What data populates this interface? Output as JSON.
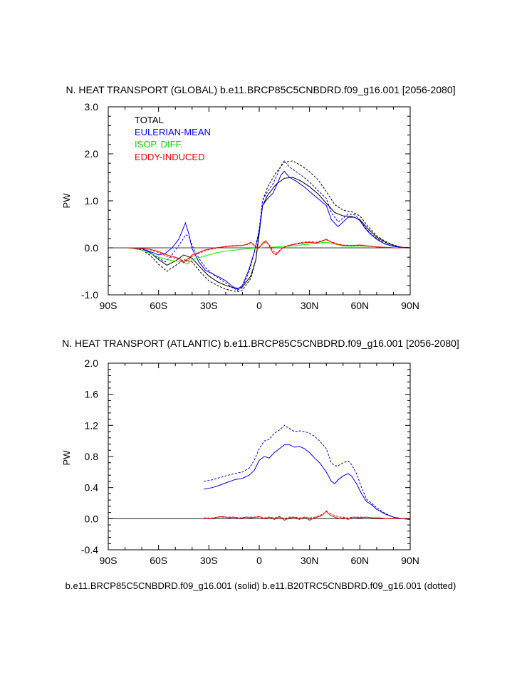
{
  "chart_data": [
    {
      "type": "line",
      "title": "N. HEAT TRANSPORT (GLOBAL) b.e11.BRCP85C5CNBDRD.f09_g16.001 [2056-2080]",
      "xlabel": "",
      "ylabel": "PW",
      "xlim": [
        -90,
        90
      ],
      "ylim": [
        -1.0,
        3.0
      ],
      "xticks": [
        -90,
        -60,
        -30,
        0,
        30,
        60,
        90
      ],
      "xtick_labels": [
        "90S",
        "60S",
        "30S",
        "0",
        "30N",
        "60N",
        "90N"
      ],
      "yticks": [
        -1.0,
        0.0,
        1.0,
        2.0,
        3.0
      ],
      "ytick_labels": [
        "-1.0",
        "0.0",
        "1.0",
        "2.0",
        "3.0"
      ],
      "legend": [
        {
          "label": "TOTAL",
          "color": "#000000"
        },
        {
          "label": "EULERIAN-MEAN",
          "color": "#0000ff"
        },
        {
          "label": "ISOP. DIFF.",
          "color": "#00ff00"
        },
        {
          "label": "EDDY-INDUCED",
          "color": "#ff0000"
        }
      ],
      "series": [
        {
          "name": "TOTAL (solid)",
          "color": "#000000",
          "dash": "solid",
          "x": [
            -78,
            -70,
            -65,
            -60,
            -55,
            -50,
            -45,
            -40,
            -35,
            -30,
            -25,
            -20,
            -15,
            -12,
            -10,
            -5,
            -2,
            0,
            2,
            5,
            10,
            15,
            20,
            25,
            30,
            35,
            40,
            45,
            50,
            55,
            60,
            65,
            70,
            75,
            80,
            85,
            90
          ],
          "y": [
            0,
            -0.02,
            -0.1,
            -0.25,
            -0.37,
            -0.28,
            -0.15,
            -0.22,
            -0.42,
            -0.6,
            -0.72,
            -0.8,
            -0.85,
            -0.86,
            -0.83,
            -0.6,
            -0.25,
            0.3,
            0.9,
            1.12,
            1.35,
            1.48,
            1.5,
            1.42,
            1.3,
            1.15,
            0.95,
            0.75,
            0.68,
            0.67,
            0.6,
            0.4,
            0.23,
            0.12,
            0.05,
            0.01,
            0
          ]
        },
        {
          "name": "TOTAL (dotted)",
          "color": "#000000",
          "dash": "dotted",
          "x": [
            -78,
            -70,
            -65,
            -60,
            -55,
            -50,
            -45,
            -40,
            -35,
            -30,
            -25,
            -20,
            -15,
            -12,
            -10,
            -5,
            -2,
            0,
            2,
            5,
            10,
            15,
            20,
            25,
            30,
            35,
            40,
            45,
            50,
            55,
            60,
            65,
            70,
            75,
            80,
            85,
            90
          ],
          "y": [
            0,
            -0.04,
            -0.16,
            -0.35,
            -0.5,
            -0.38,
            -0.25,
            -0.3,
            -0.52,
            -0.7,
            -0.8,
            -0.88,
            -0.92,
            -0.93,
            -0.9,
            -0.65,
            -0.25,
            0.4,
            1.0,
            1.3,
            1.6,
            1.82,
            1.85,
            1.75,
            1.62,
            1.45,
            1.2,
            0.92,
            0.8,
            0.77,
            0.68,
            0.45,
            0.26,
            0.14,
            0.06,
            0.01,
            0
          ]
        },
        {
          "name": "EULERIAN-MEAN (solid)",
          "color": "#0000ff",
          "dash": "solid",
          "x": [
            -78,
            -70,
            -65,
            -60,
            -56,
            -52,
            -48,
            -46,
            -44,
            -42,
            -40,
            -36,
            -32,
            -28,
            -24,
            -20,
            -16,
            -13,
            -10,
            -6,
            -3,
            0,
            2,
            5,
            8,
            10,
            13,
            15,
            18,
            22,
            26,
            30,
            35,
            40,
            43,
            47,
            50,
            53,
            57,
            60,
            63,
            66,
            70,
            75,
            80,
            85,
            90
          ],
          "y": [
            0,
            -0.02,
            -0.08,
            -0.15,
            -0.12,
            0.0,
            0.18,
            0.35,
            0.53,
            0.3,
            -0.02,
            -0.3,
            -0.48,
            -0.55,
            -0.62,
            -0.7,
            -0.82,
            -0.88,
            -0.8,
            -0.45,
            -0.1,
            0.35,
            0.9,
            1.05,
            1.15,
            1.3,
            1.55,
            1.63,
            1.5,
            1.42,
            1.32,
            1.2,
            1.05,
            0.9,
            0.6,
            0.45,
            0.55,
            0.65,
            0.65,
            0.58,
            0.42,
            0.3,
            0.18,
            0.08,
            0.03,
            0.01,
            0
          ]
        },
        {
          "name": "EULERIAN-MEAN (dotted)",
          "color": "#0000ff",
          "dash": "dotted",
          "x": [
            -78,
            -70,
            -65,
            -60,
            -56,
            -52,
            -48,
            -46,
            -44,
            -42,
            -40,
            -36,
            -32,
            -28,
            -24,
            -20,
            -16,
            -13,
            -10,
            -6,
            -3,
            0,
            2,
            5,
            8,
            10,
            13,
            15,
            18,
            22,
            26,
            30,
            35,
            40,
            43,
            47,
            50,
            53,
            57,
            60,
            63,
            66,
            70,
            75,
            80,
            85,
            90
          ],
          "y": [
            0,
            -0.02,
            -0.1,
            -0.22,
            -0.3,
            -0.15,
            0.05,
            0.15,
            0.28,
            0.25,
            0.05,
            -0.22,
            -0.42,
            -0.55,
            -0.65,
            -0.75,
            -0.85,
            -0.9,
            -0.85,
            -0.5,
            -0.12,
            0.4,
            1.0,
            1.2,
            1.35,
            1.5,
            1.75,
            1.85,
            1.72,
            1.62,
            1.52,
            1.4,
            1.22,
            1.05,
            0.75,
            0.55,
            0.63,
            0.72,
            0.7,
            0.6,
            0.44,
            0.32,
            0.2,
            0.09,
            0.03,
            0.01,
            0
          ]
        },
        {
          "name": "ISOP. DIFF. (solid)",
          "color": "#00ff00",
          "dash": "solid",
          "x": [
            -78,
            -70,
            -65,
            -60,
            -55,
            -50,
            -45,
            -43,
            -40,
            -35,
            -30,
            -25,
            -20,
            -15,
            -10,
            -5,
            0,
            5,
            10,
            15,
            20,
            25,
            30,
            35,
            40,
            45,
            50,
            55,
            60,
            65,
            70,
            75,
            80,
            85,
            90
          ],
          "y": [
            0,
            -0.05,
            -0.12,
            -0.2,
            -0.25,
            -0.28,
            -0.3,
            -0.35,
            -0.25,
            -0.2,
            -0.15,
            -0.1,
            -0.07,
            -0.05,
            -0.03,
            -0.01,
            0,
            0.01,
            0.02,
            0.03,
            0.04,
            0.06,
            0.08,
            0.1,
            0.12,
            0.08,
            0.04,
            0.03,
            0.04,
            0.03,
            0.02,
            0.01,
            0,
            0,
            0
          ]
        },
        {
          "name": "EDDY-INDUCED (solid)",
          "color": "#ff0000",
          "dash": "solid",
          "x": [
            -78,
            -70,
            -65,
            -60,
            -55,
            -50,
            -47,
            -45,
            -42,
            -40,
            -36,
            -33,
            -30,
            -26,
            -22,
            -18,
            -14,
            -10,
            -7,
            -5,
            -3,
            -1,
            0,
            2,
            4,
            6,
            8,
            10,
            14,
            18,
            22,
            26,
            30,
            34,
            38,
            40,
            43,
            46,
            50,
            55,
            60,
            65,
            70,
            75,
            80,
            85,
            90
          ],
          "y": [
            0,
            -0.01,
            -0.03,
            -0.08,
            -0.15,
            -0.2,
            -0.24,
            -0.3,
            -0.22,
            -0.15,
            -0.1,
            -0.05,
            -0.03,
            0.0,
            0.02,
            0.04,
            0.05,
            0.05,
            0.08,
            0.12,
            0.05,
            -0.02,
            0.0,
            0.1,
            0.15,
            0.05,
            -0.1,
            -0.15,
            0.0,
            0.05,
            0.08,
            0.1,
            0.12,
            0.1,
            0.15,
            0.18,
            0.12,
            0.08,
            0.05,
            0.05,
            0.06,
            0.04,
            0.02,
            0.01,
            0,
            0,
            0
          ]
        },
        {
          "name": "EDDY-INDUCED (dotted)",
          "color": "#ff0000",
          "dash": "dotted",
          "x": [
            -78,
            -70,
            -65,
            -60,
            -55,
            -50,
            -47,
            -45,
            -42,
            -40,
            -36,
            -33,
            -30,
            -26,
            -22,
            -18,
            -14,
            -10,
            -7,
            -5,
            -3,
            -1,
            0,
            2,
            4,
            6,
            8,
            10,
            14,
            18,
            22,
            26,
            30,
            34,
            38,
            40,
            43,
            46,
            50,
            55,
            60,
            65,
            70,
            75,
            80,
            85,
            90
          ],
          "y": [
            0,
            -0.01,
            -0.04,
            -0.1,
            -0.18,
            -0.22,
            -0.27,
            -0.32,
            -0.25,
            -0.18,
            -0.12,
            -0.07,
            -0.04,
            -0.01,
            0.01,
            0.03,
            0.04,
            0.05,
            0.07,
            0.11,
            0.06,
            0.0,
            0.02,
            0.08,
            0.13,
            0.06,
            -0.05,
            -0.12,
            0.0,
            0.06,
            0.09,
            0.12,
            0.13,
            0.12,
            0.16,
            0.17,
            0.13,
            0.09,
            0.06,
            0.05,
            0.05,
            0.04,
            0.02,
            0.01,
            0,
            0,
            0
          ]
        }
      ]
    },
    {
      "type": "line",
      "title": "N. HEAT TRANSPORT (ATLANTIC) b.e11.BRCP85C5CNBDRD.f09_g16.001 [2056-2080]",
      "xlabel": "b.e11.BRCP85C5CNBDRD.f09_g16.001 (solid) b.e11.B20TRC5CNBDRD.f09_g16.001 (dotted)",
      "ylabel": "PW",
      "xlim": [
        -90,
        90
      ],
      "ylim": [
        -0.4,
        2.0
      ],
      "xticks": [
        -90,
        -60,
        -30,
        0,
        30,
        60,
        90
      ],
      "xtick_labels": [
        "90S",
        "60S",
        "30S",
        "0",
        "30N",
        "60N",
        "90N"
      ],
      "yticks": [
        -0.4,
        0.0,
        0.4,
        0.8,
        1.2,
        1.6,
        2.0
      ],
      "ytick_labels": [
        "-0.4",
        "0.0",
        "0.4",
        "0.8",
        "1.2",
        "1.6",
        "2.0"
      ],
      "series": [
        {
          "name": "EULERIAN-MEAN (solid)",
          "color": "#0000ff",
          "dash": "solid",
          "x": [
            -33,
            -28,
            -25,
            -20,
            -15,
            -10,
            -6,
            -3,
            0,
            3,
            6,
            9,
            12,
            15,
            18,
            21,
            24,
            27,
            30,
            33,
            36,
            40,
            43,
            45,
            47,
            50,
            53,
            55,
            58,
            61,
            64,
            67,
            70,
            75,
            80,
            85,
            90
          ],
          "y": [
            0.38,
            0.4,
            0.42,
            0.46,
            0.5,
            0.52,
            0.56,
            0.62,
            0.75,
            0.8,
            0.78,
            0.85,
            0.9,
            0.95,
            0.95,
            0.92,
            0.93,
            0.9,
            0.85,
            0.78,
            0.72,
            0.6,
            0.48,
            0.45,
            0.5,
            0.55,
            0.58,
            0.55,
            0.45,
            0.32,
            0.22,
            0.18,
            0.12,
            0.06,
            0.02,
            0.0,
            -0.01
          ]
        },
        {
          "name": "EULERIAN-MEAN (dotted)",
          "color": "#0000ff",
          "dash": "dotted",
          "x": [
            -33,
            -28,
            -25,
            -20,
            -15,
            -10,
            -6,
            -3,
            0,
            3,
            6,
            9,
            12,
            15,
            18,
            21,
            24,
            27,
            30,
            33,
            36,
            40,
            43,
            45,
            47,
            50,
            53,
            55,
            58,
            61,
            64,
            67,
            70,
            75,
            80,
            85,
            90
          ],
          "y": [
            0.48,
            0.5,
            0.52,
            0.55,
            0.58,
            0.6,
            0.65,
            0.75,
            0.9,
            1.0,
            1.02,
            1.1,
            1.14,
            1.2,
            1.16,
            1.12,
            1.13,
            1.12,
            1.1,
            1.06,
            1.0,
            0.9,
            0.72,
            0.68,
            0.68,
            0.72,
            0.74,
            0.7,
            0.58,
            0.4,
            0.25,
            0.2,
            0.14,
            0.07,
            0.02,
            0.0,
            -0.01
          ]
        },
        {
          "name": "EDDY-INDUCED (solid)",
          "color": "#ff0000",
          "dash": "solid",
          "x": [
            -33,
            -28,
            -25,
            -22,
            -18,
            -15,
            -12,
            -8,
            -5,
            -2,
            0,
            3,
            6,
            9,
            12,
            15,
            18,
            21,
            24,
            27,
            30,
            33,
            36,
            38,
            40,
            42,
            45,
            48,
            50,
            53,
            56,
            60,
            64,
            68,
            72,
            76,
            80,
            85,
            90
          ],
          "y": [
            0.0,
            0.0,
            0.02,
            0.03,
            0.01,
            0.02,
            0.0,
            0.02,
            0.01,
            0.02,
            0.03,
            0.0,
            0.02,
            -0.01,
            0.03,
            -0.02,
            0.01,
            0.02,
            -0.01,
            0.02,
            -0.02,
            0.01,
            0.03,
            0.05,
            0.1,
            0.05,
            0.02,
            0.0,
            0.01,
            -0.01,
            0.02,
            0.01,
            0.02,
            0.01,
            0.01,
            0.0,
            0.0,
            0.0,
            0.0
          ]
        },
        {
          "name": "EDDY-INDUCED (dotted)",
          "color": "#ff0000",
          "dash": "dotted",
          "x": [
            -33,
            -28,
            -25,
            -22,
            -18,
            -15,
            -12,
            -8,
            -5,
            -2,
            0,
            3,
            6,
            9,
            12,
            15,
            18,
            21,
            24,
            27,
            30,
            33,
            36,
            38,
            40,
            42,
            45,
            48,
            50,
            53,
            56,
            60,
            64,
            68,
            72,
            76,
            80,
            85,
            90
          ],
          "y": [
            0.01,
            0.01,
            0.02,
            0.02,
            0.02,
            0.02,
            0.01,
            0.02,
            0.02,
            0.02,
            0.02,
            0.01,
            0.02,
            0.01,
            0.02,
            0.0,
            0.02,
            0.02,
            0.01,
            0.02,
            0.01,
            0.02,
            0.04,
            0.06,
            0.09,
            0.07,
            0.04,
            0.02,
            0.02,
            0.01,
            0.02,
            0.02,
            0.02,
            0.01,
            0.01,
            0.0,
            0.0,
            0.0,
            0.0
          ]
        }
      ]
    }
  ]
}
